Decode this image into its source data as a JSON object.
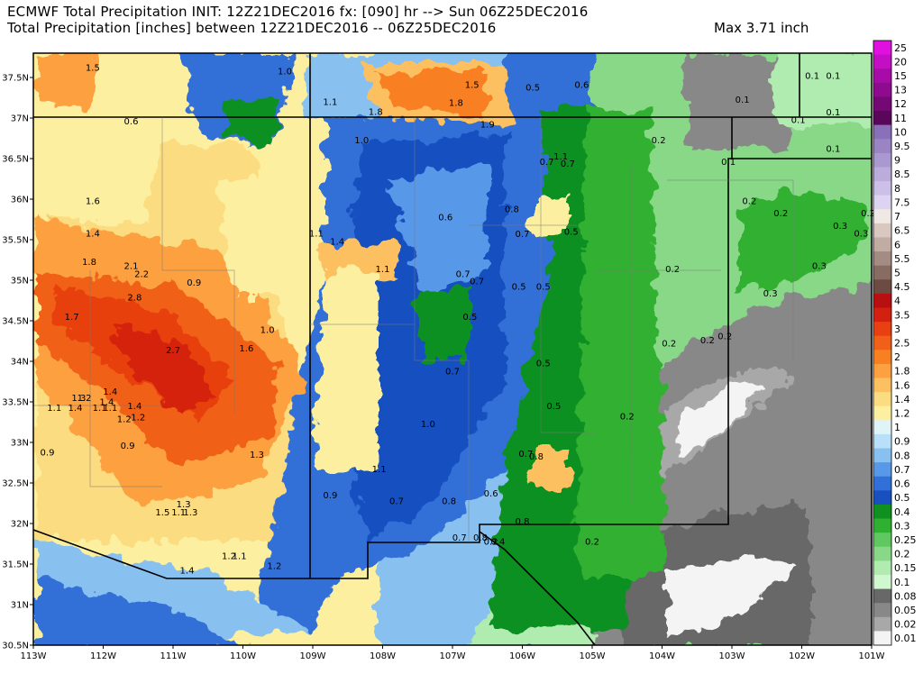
{
  "header": {
    "title_line1": "ECMWF Total Precipitation INIT: 12Z21DEC2016 fx: [090] hr --> Sun 06Z25DEC2016",
    "title_line2": "Total Precipitation [inches] between 12Z21DEC2016 -- 06Z25DEC2016",
    "max_label": "Max 3.71 inch"
  },
  "axes": {
    "lat_labels": [
      "37.5N",
      "37N",
      "36.5N",
      "36N",
      "35.5N",
      "35N",
      "34.5N",
      "34N",
      "33.5N",
      "33N",
      "32.5N",
      "32N",
      "31.5N",
      "31N",
      "30.5N"
    ],
    "lon_labels": [
      "113W",
      "112W",
      "111W",
      "110W",
      "109W",
      "108W",
      "107W",
      "106W",
      "105W",
      "104W",
      "103W",
      "102W",
      "101W"
    ]
  },
  "colorbar": {
    "levels": [
      "25",
      "20",
      "15",
      "13",
      "12",
      "11",
      "10",
      "9.5",
      "9",
      "8.5",
      "8",
      "7.5",
      "7",
      "6.5",
      "6",
      "5.5",
      "5",
      "4.5",
      "4",
      "3.5",
      "3",
      "2.5",
      "2",
      "1.8",
      "1.6",
      "1.4",
      "1.2",
      "1",
      "0.9",
      "0.8",
      "0.7",
      "0.6",
      "0.5",
      "0.4",
      "0.3",
      "0.25",
      "0.2",
      "0.15",
      "0.1",
      "0.08",
      "0.05",
      "0.02",
      "0.01"
    ],
    "colors": [
      "#e010e0",
      "#c40ec4",
      "#a80ca8",
      "#8e0a8e",
      "#740874",
      "#5a065a",
      "#8a70b8",
      "#9a84c4",
      "#aa98d0",
      "#bbacdc",
      "#ccc0e8",
      "#ddd4f2",
      "#f0e8e4",
      "#d8c8c0",
      "#c0aca2",
      "#a48c82",
      "#886c62",
      "#6c4c42",
      "#b81010",
      "#d42010",
      "#e84010",
      "#f06018",
      "#f88020",
      "#fca040",
      "#fcc060",
      "#fcdc80",
      "#fcf0a0",
      "#e0f4f8",
      "#b8e0f8",
      "#88c0f0",
      "#5898e8",
      "#3070d8",
      "#1850c0",
      "#109020",
      "#30b030",
      "#60c860",
      "#88d888",
      "#b0ecb0",
      "#d0f8d0",
      "#686868",
      "#888888",
      "#a8a8a8",
      "#f4f4f4"
    ]
  },
  "values": [
    {
      "text": "1.5",
      "lon": -112.15,
      "lat": 37.62
    },
    {
      "text": "1.0",
      "lon": -109.4,
      "lat": 37.58
    },
    {
      "text": "1.1",
      "lon": -108.75,
      "lat": 37.2
    },
    {
      "text": "1.8",
      "lon": -108.1,
      "lat": 37.08
    },
    {
      "text": "1.5",
      "lon": -106.72,
      "lat": 37.41
    },
    {
      "text": "1.8",
      "lon": -106.95,
      "lat": 37.19
    },
    {
      "text": "0.5",
      "lon": -105.85,
      "lat": 37.38
    },
    {
      "text": "0.6",
      "lon": -105.15,
      "lat": 37.41
    },
    {
      "text": "0.6",
      "lon": -111.6,
      "lat": 36.96
    },
    {
      "text": "1.9",
      "lon": -106.5,
      "lat": 36.92
    },
    {
      "text": "1.0",
      "lon": -108.3,
      "lat": 36.73
    },
    {
      "text": "1.1",
      "lon": -105.45,
      "lat": 36.53
    },
    {
      "text": "0.7",
      "lon": -105.65,
      "lat": 36.46
    },
    {
      "text": "0.7",
      "lon": -105.35,
      "lat": 36.44
    },
    {
      "text": "0.2",
      "lon": -104.05,
      "lat": 36.73
    },
    {
      "text": "0.1",
      "lon": -101.85,
      "lat": 37.52
    },
    {
      "text": "0.1",
      "lon": -101.55,
      "lat": 37.52
    },
    {
      "text": "0.1",
      "lon": -102.85,
      "lat": 37.23
    },
    {
      "text": "0.1",
      "lon": -101.55,
      "lat": 37.07
    },
    {
      "text": "0.1",
      "lon": -102.05,
      "lat": 36.98
    },
    {
      "text": "0.1",
      "lon": -101.55,
      "lat": 36.62
    },
    {
      "text": "0.1",
      "lon": -103.05,
      "lat": 36.46
    },
    {
      "text": "1.6",
      "lon": -112.15,
      "lat": 35.98
    },
    {
      "text": "0.8",
      "lon": -106.15,
      "lat": 35.88
    },
    {
      "text": "0.6",
      "lon": -107.1,
      "lat": 35.78
    },
    {
      "text": "0.2",
      "lon": -102.75,
      "lat": 35.98
    },
    {
      "text": "0.2",
      "lon": -102.3,
      "lat": 35.83
    },
    {
      "text": "0.2",
      "lon": -101.05,
      "lat": 35.83
    },
    {
      "text": "0.3",
      "lon": -101.45,
      "lat": 35.67
    },
    {
      "text": "0.3",
      "lon": -101.15,
      "lat": 35.58
    },
    {
      "text": "1.4",
      "lon": -112.15,
      "lat": 35.58
    },
    {
      "text": "1.1",
      "lon": -108.95,
      "lat": 35.58
    },
    {
      "text": "1.4",
      "lon": -108.65,
      "lat": 35.48
    },
    {
      "text": "0.7",
      "lon": -106.0,
      "lat": 35.57
    },
    {
      "text": "0.5",
      "lon": -105.3,
      "lat": 35.6
    },
    {
      "text": "1.8",
      "lon": -112.2,
      "lat": 35.23
    },
    {
      "text": "2.1",
      "lon": -111.6,
      "lat": 35.18
    },
    {
      "text": "2.2",
      "lon": -111.45,
      "lat": 35.08
    },
    {
      "text": "1.1",
      "lon": -108.0,
      "lat": 35.14
    },
    {
      "text": "0.7",
      "lon": -106.85,
      "lat": 35.08
    },
    {
      "text": "0.7",
      "lon": -106.65,
      "lat": 34.99
    },
    {
      "text": "0.5",
      "lon": -106.05,
      "lat": 34.92
    },
    {
      "text": "0.5",
      "lon": -105.7,
      "lat": 34.92
    },
    {
      "text": "0.2",
      "lon": -103.85,
      "lat": 35.14
    },
    {
      "text": "0.3",
      "lon": -101.75,
      "lat": 35.18
    },
    {
      "text": "0.3",
      "lon": -102.45,
      "lat": 34.84
    },
    {
      "text": "0.9",
      "lon": -110.7,
      "lat": 34.97
    },
    {
      "text": "2.8",
      "lon": -111.55,
      "lat": 34.79
    },
    {
      "text": "1.7",
      "lon": -112.45,
      "lat": 34.55
    },
    {
      "text": "0.5",
      "lon": -106.75,
      "lat": 34.55
    },
    {
      "text": "1.0",
      "lon": -109.65,
      "lat": 34.39
    },
    {
      "text": "2.7",
      "lon": -111.0,
      "lat": 34.14
    },
    {
      "text": "1.6",
      "lon": -109.95,
      "lat": 34.16
    },
    {
      "text": "0.2",
      "lon": -103.9,
      "lat": 34.22
    },
    {
      "text": "0.2",
      "lon": -103.35,
      "lat": 34.26
    },
    {
      "text": "0.2",
      "lon": -103.1,
      "lat": 34.31
    },
    {
      "text": "0.5",
      "lon": -105.7,
      "lat": 33.98
    },
    {
      "text": "0.7",
      "lon": -107.0,
      "lat": 33.88
    },
    {
      "text": "1.4",
      "lon": -111.9,
      "lat": 33.63
    },
    {
      "text": "1.4",
      "lon": -111.95,
      "lat": 33.5
    },
    {
      "text": "1.1",
      "lon": -112.7,
      "lat": 33.43
    },
    {
      "text": "1.4",
      "lon": -112.4,
      "lat": 33.43
    },
    {
      "text": "1.3",
      "lon": -112.35,
      "lat": 33.55
    },
    {
      "text": "1.2",
      "lon": -112.27,
      "lat": 33.55
    },
    {
      "text": "1.1",
      "lon": -112.05,
      "lat": 33.43
    },
    {
      "text": "1.1",
      "lon": -111.9,
      "lat": 33.43
    },
    {
      "text": "1.4",
      "lon": -111.55,
      "lat": 33.45
    },
    {
      "text": "1.2",
      "lon": -111.7,
      "lat": 33.29
    },
    {
      "text": "1.2",
      "lon": -111.5,
      "lat": 33.31
    },
    {
      "text": "0.5",
      "lon": -105.55,
      "lat": 33.45
    },
    {
      "text": "0.2",
      "lon": -104.5,
      "lat": 33.32
    },
    {
      "text": "1.0",
      "lon": -107.35,
      "lat": 33.23
    },
    {
      "text": "0.9",
      "lon": -111.65,
      "lat": 32.96
    },
    {
      "text": "0.9",
      "lon": -112.8,
      "lat": 32.88
    },
    {
      "text": "1.3",
      "lon": -109.8,
      "lat": 32.85
    },
    {
      "text": "0.7",
      "lon": -105.95,
      "lat": 32.86
    },
    {
      "text": "0.8",
      "lon": -105.8,
      "lat": 32.83
    },
    {
      "text": "1.1",
      "lon": -108.05,
      "lat": 32.67
    },
    {
      "text": "0.9",
      "lon": -108.75,
      "lat": 32.35
    },
    {
      "text": "0.7",
      "lon": -107.8,
      "lat": 32.28
    },
    {
      "text": "0.8",
      "lon": -107.05,
      "lat": 32.28
    },
    {
      "text": "0.6",
      "lon": -106.45,
      "lat": 32.37
    },
    {
      "text": "1.3",
      "lon": -110.85,
      "lat": 32.24
    },
    {
      "text": "1.5",
      "lon": -111.15,
      "lat": 32.14
    },
    {
      "text": "1.1",
      "lon": -110.92,
      "lat": 32.14
    },
    {
      "text": "1.3",
      "lon": -110.75,
      "lat": 32.14
    },
    {
      "text": "0.8",
      "lon": -106.0,
      "lat": 32.03
    },
    {
      "text": "0.7",
      "lon": -106.9,
      "lat": 31.83
    },
    {
      "text": "0.8",
      "lon": -106.6,
      "lat": 31.83
    },
    {
      "text": "0.4",
      "lon": -106.35,
      "lat": 31.78
    },
    {
      "text": "0.2",
      "lon": -106.45,
      "lat": 31.78
    },
    {
      "text": "0.2",
      "lon": -105.0,
      "lat": 31.78
    },
    {
      "text": "1.2",
      "lon": -110.2,
      "lat": 31.6
    },
    {
      "text": "1.1",
      "lon": -110.05,
      "lat": 31.6
    },
    {
      "text": "1.4",
      "lon": -110.8,
      "lat": 31.42
    },
    {
      "text": "1.2",
      "lon": -109.55,
      "lat": 31.48
    }
  ]
}
